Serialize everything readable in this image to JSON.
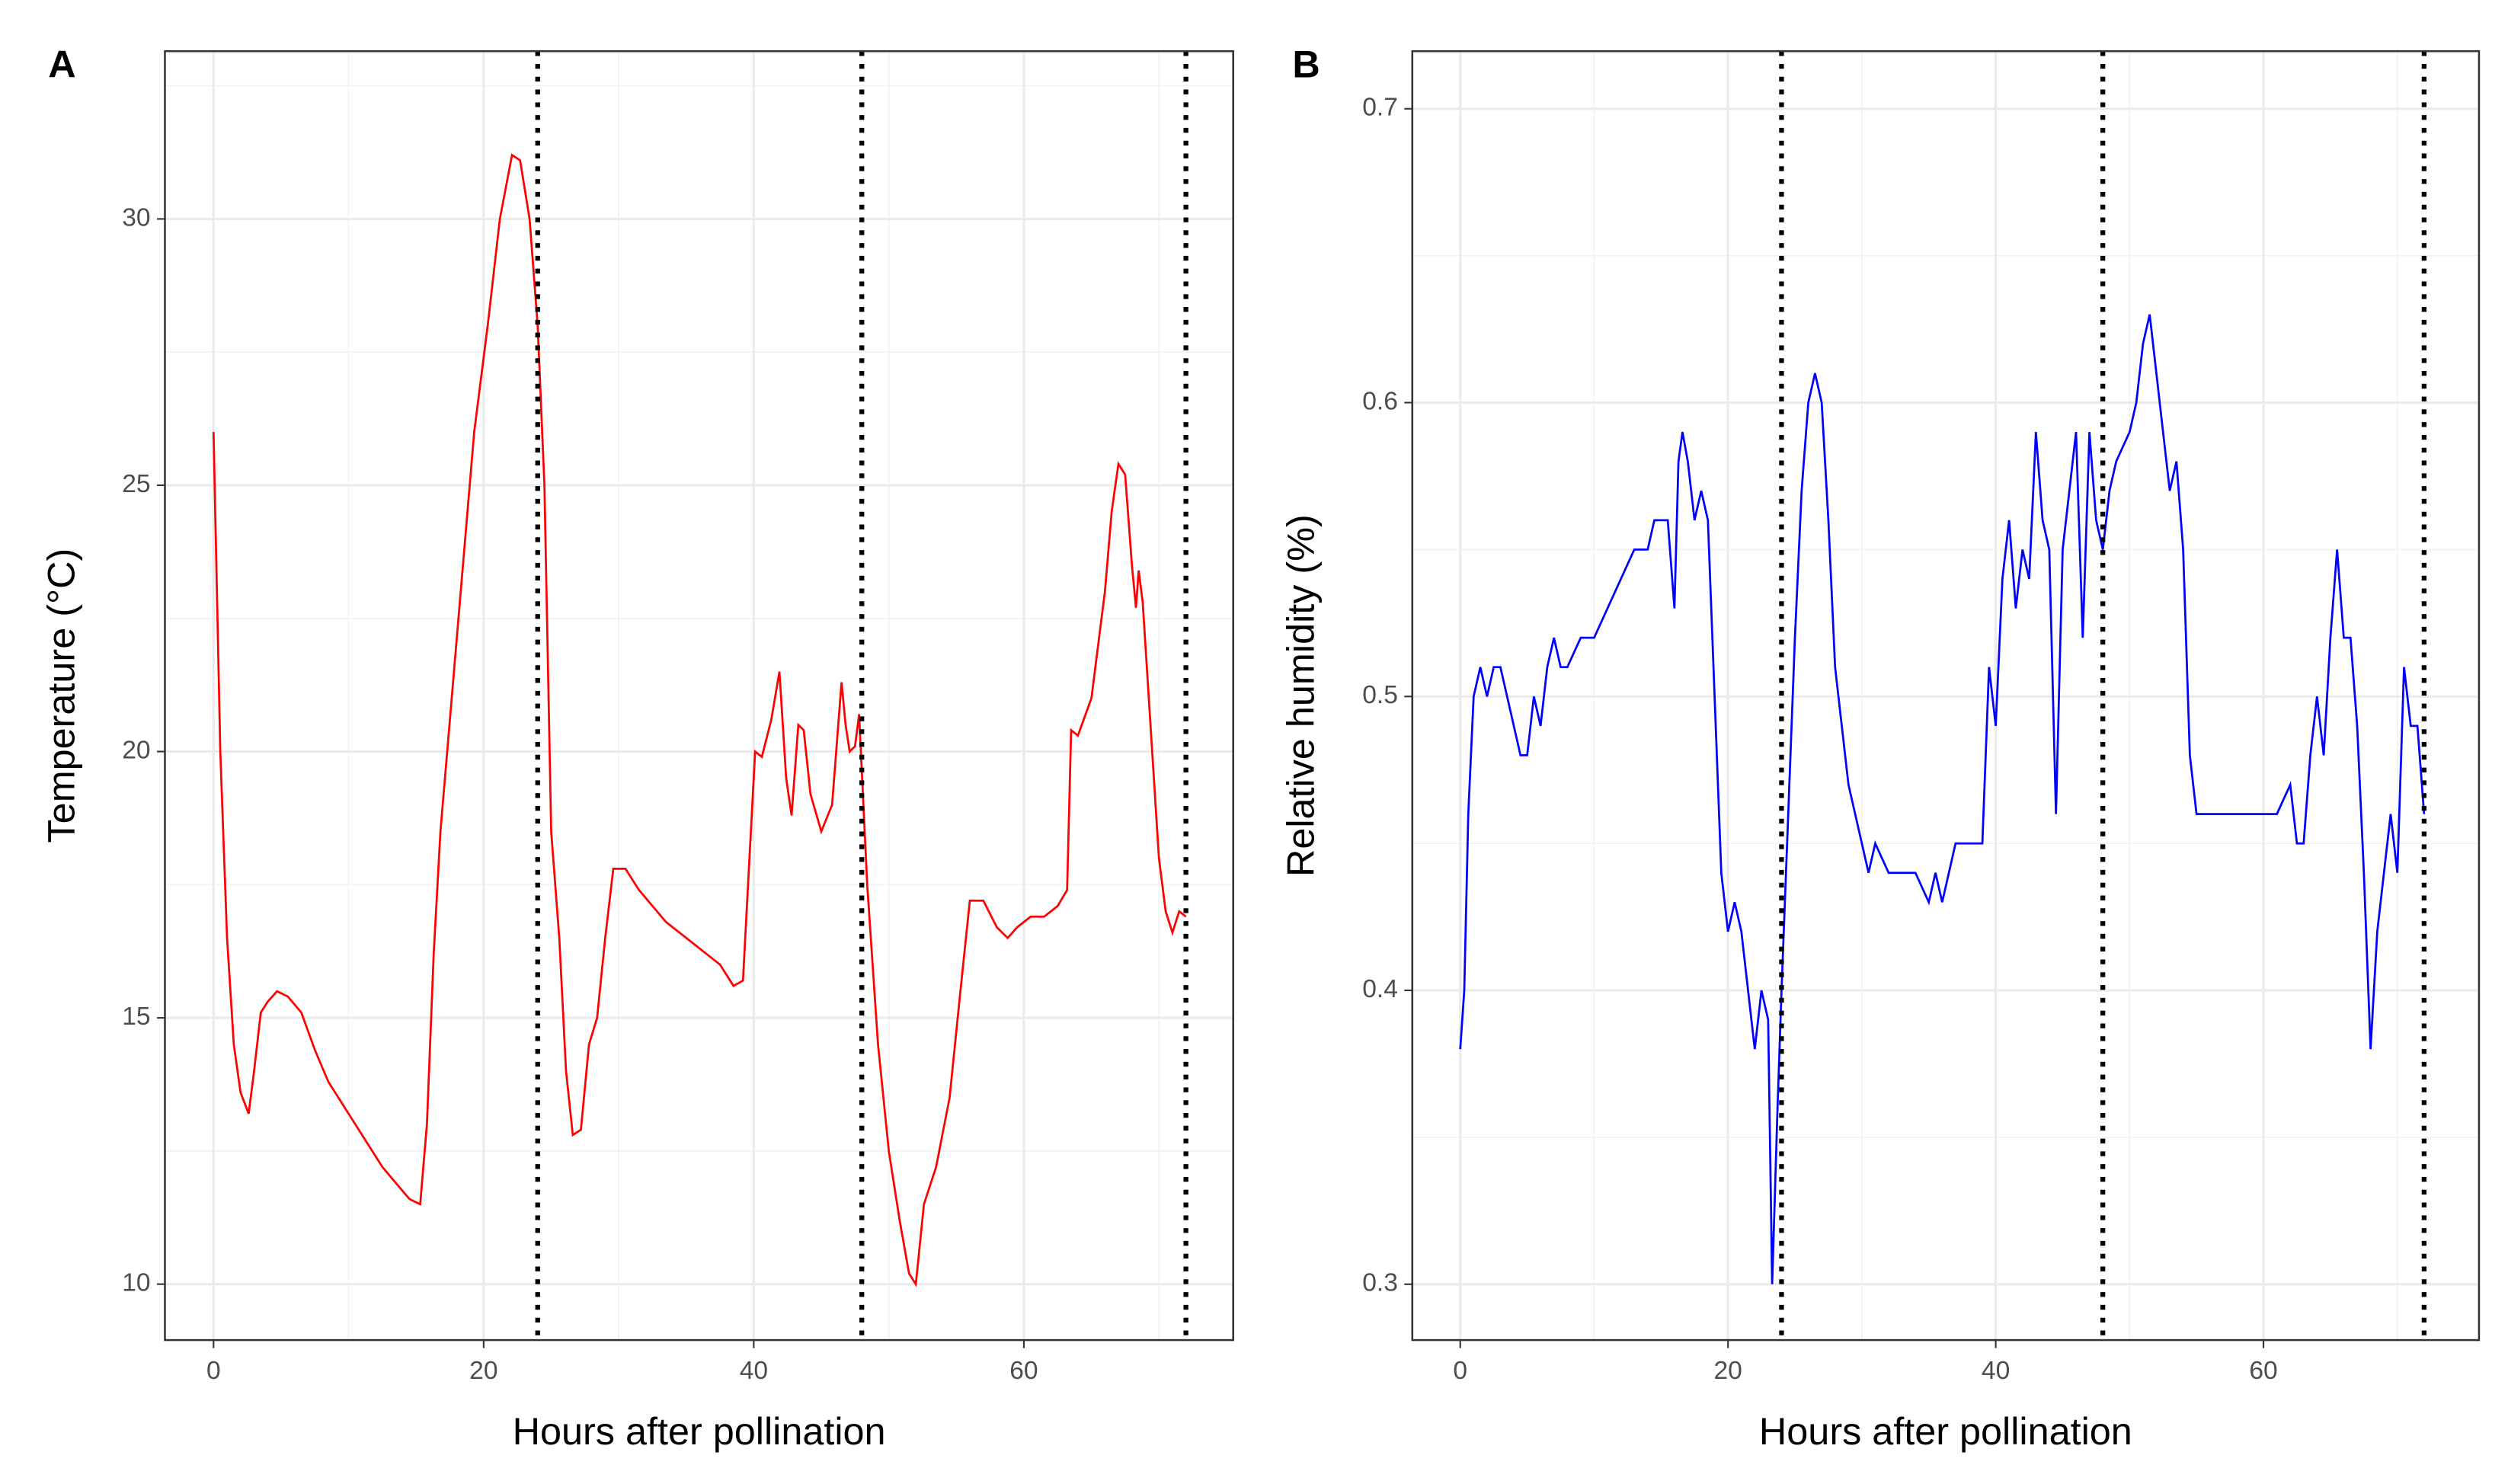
{
  "chart_data": [
    {
      "type": "line",
      "panel": "A",
      "x_label": "Hours after pollination",
      "y_label": "Temperature (°C)",
      "color": "#ff0000",
      "x": [
        0,
        0.5,
        1,
        1.5,
        2,
        2.6,
        3,
        3.5,
        4,
        4.7,
        5.5,
        6.5,
        7.5,
        8.5,
        9.5,
        10.5,
        11.5,
        12.5,
        13.5,
        14.5,
        15.3,
        15.8,
        16.3,
        16.8,
        17.4,
        18.3,
        19.3,
        20.3,
        21.2,
        22.1,
        22.7,
        23.4,
        24,
        24.5,
        25,
        25.6,
        26.1,
        26.6,
        27.2,
        27.8,
        28.4,
        29,
        29.6,
        30.5,
        31.5,
        32.5,
        33.5,
        34.5,
        35.5,
        36.5,
        37.5,
        38.5,
        39.2,
        40.1,
        40.6,
        41.3,
        41.9,
        42.4,
        42.8,
        43.3,
        43.7,
        44.2,
        45,
        45.8,
        46.5,
        46.8,
        47.1,
        47.5,
        47.8,
        48.4,
        49.2,
        50,
        50.8,
        51.5,
        52,
        52.6,
        53.5,
        54.5,
        55.3,
        56,
        57,
        58,
        58.8,
        59.5,
        60.5,
        61.5,
        62.5,
        63.2,
        63.5,
        64,
        65,
        66,
        66.5,
        67,
        67.5,
        68,
        68.3,
        68.5,
        68.8,
        69.5,
        70,
        70.5,
        71,
        71.5,
        72
      ],
      "values": [
        26,
        20,
        16.5,
        14.5,
        13.6,
        13.2,
        14,
        15.1,
        15.3,
        15.5,
        15.4,
        15.1,
        14.4,
        13.8,
        13.4,
        13,
        12.6,
        12.2,
        11.9,
        11.6,
        11.5,
        13,
        16.2,
        18.5,
        20.3,
        23,
        26,
        28,
        30,
        31.2,
        31.1,
        30,
        28,
        25,
        18.5,
        16.5,
        14,
        12.8,
        12.9,
        14.5,
        15,
        16.5,
        17.8,
        17.8,
        17.4,
        17.1,
        16.8,
        16.6,
        16.4,
        16.2,
        16,
        15.6,
        15.7,
        20,
        19.9,
        20.6,
        21.5,
        19.5,
        18.8,
        20.5,
        20.4,
        19.2,
        18.5,
        19,
        21.3,
        20.5,
        20,
        20.1,
        20.7,
        17.5,
        14.5,
        12.5,
        11.2,
        10.2,
        10,
        11.5,
        12.2,
        13.5,
        15.5,
        17.2,
        17.2,
        16.7,
        16.5,
        16.7,
        16.9,
        16.9,
        17.1,
        17.4,
        20.4,
        20.3,
        21,
        23,
        24.5,
        25.4,
        25.2,
        23.5,
        22.7,
        23.4,
        22.8,
        20,
        18,
        17,
        16.6,
        17,
        16.9
      ],
      "vlines": [
        24,
        48,
        72
      ],
      "xlim": [
        -3.6,
        75.5
      ],
      "ylim": [
        8.95,
        33.15
      ],
      "xticks": [
        0,
        20,
        40,
        60
      ],
      "yticks": [
        10,
        15,
        20,
        25,
        30
      ],
      "xminor": [
        10,
        30,
        50,
        70
      ],
      "yminor": [
        12.5,
        17.5,
        22.5,
        27.5,
        32.5
      ],
      "grid": true
    },
    {
      "type": "line",
      "panel": "B",
      "x_label": "Hours after pollination",
      "y_label": "Relative humidity (%)",
      "color": "#0000ff",
      "x": [
        0,
        0.3,
        0.6,
        1,
        1.5,
        2,
        2.5,
        3,
        3.5,
        4,
        4.5,
        5,
        5.5,
        6,
        6.5,
        7,
        7.5,
        8,
        9,
        10,
        11,
        12,
        13,
        14,
        14.5,
        15.5,
        16,
        16.3,
        16.6,
        17,
        17.5,
        18,
        18.5,
        19,
        19.5,
        20,
        20.5,
        21,
        21.5,
        22,
        22.5,
        23,
        23.3,
        23.7,
        24,
        24.5,
        25,
        25.5,
        26,
        26.5,
        27,
        27.5,
        28,
        28.5,
        29,
        29.5,
        30,
        30.5,
        31,
        32,
        33,
        34,
        35,
        35.5,
        36,
        36.5,
        37,
        38,
        39,
        39.5,
        40,
        40.5,
        41,
        41.5,
        42,
        42.5,
        43,
        43.5,
        44,
        44.5,
        45,
        45.5,
        46,
        46.5,
        47,
        47.5,
        48,
        48.5,
        49,
        50,
        50.5,
        51,
        51.5,
        52,
        52.5,
        53,
        53.5,
        54,
        54.5,
        55,
        58,
        61,
        62,
        62.5,
        63,
        63.5,
        64,
        64.5,
        65,
        65.5,
        66,
        66.5,
        67,
        67.5,
        68,
        68.5,
        69,
        69.5,
        70,
        70.5,
        71,
        71.5,
        72
      ],
      "values": [
        0.38,
        0.4,
        0.46,
        0.5,
        0.51,
        0.5,
        0.51,
        0.51,
        0.5,
        0.49,
        0.48,
        0.48,
        0.5,
        0.49,
        0.51,
        0.52,
        0.51,
        0.51,
        0.52,
        0.52,
        0.53,
        0.54,
        0.55,
        0.55,
        0.56,
        0.56,
        0.53,
        0.58,
        0.59,
        0.58,
        0.56,
        0.57,
        0.56,
        0.5,
        0.44,
        0.42,
        0.43,
        0.42,
        0.4,
        0.38,
        0.4,
        0.39,
        0.3,
        0.36,
        0.4,
        0.46,
        0.52,
        0.57,
        0.6,
        0.61,
        0.6,
        0.56,
        0.51,
        0.49,
        0.47,
        0.46,
        0.45,
        0.44,
        0.45,
        0.44,
        0.44,
        0.44,
        0.43,
        0.44,
        0.43,
        0.44,
        0.45,
        0.45,
        0.45,
        0.51,
        0.49,
        0.54,
        0.56,
        0.53,
        0.55,
        0.54,
        0.59,
        0.56,
        0.55,
        0.46,
        0.55,
        0.57,
        0.59,
        0.52,
        0.59,
        0.56,
        0.55,
        0.57,
        0.58,
        0.59,
        0.6,
        0.62,
        0.63,
        0.61,
        0.59,
        0.57,
        0.58,
        0.55,
        0.48,
        0.46,
        0.46,
        0.46,
        0.47,
        0.45,
        0.45,
        0.48,
        0.5,
        0.48,
        0.52,
        0.55,
        0.52,
        0.52,
        0.49,
        0.44,
        0.38,
        0.42,
        0.44,
        0.46,
        0.44,
        0.51,
        0.49,
        0.49,
        0.46
      ],
      "vlines": [
        24,
        48,
        72
      ],
      "xlim": [
        -3.58,
        76.1
      ],
      "ylim": [
        0.281,
        0.7196
      ],
      "xticks": [
        0,
        20,
        40,
        60
      ],
      "yticks": [
        0.3,
        0.4,
        0.5,
        0.6,
        0.7
      ],
      "xminor": [
        10,
        30,
        50,
        70
      ],
      "yminor": [
        0.35,
        0.45,
        0.55,
        0.65
      ],
      "grid": true
    }
  ]
}
